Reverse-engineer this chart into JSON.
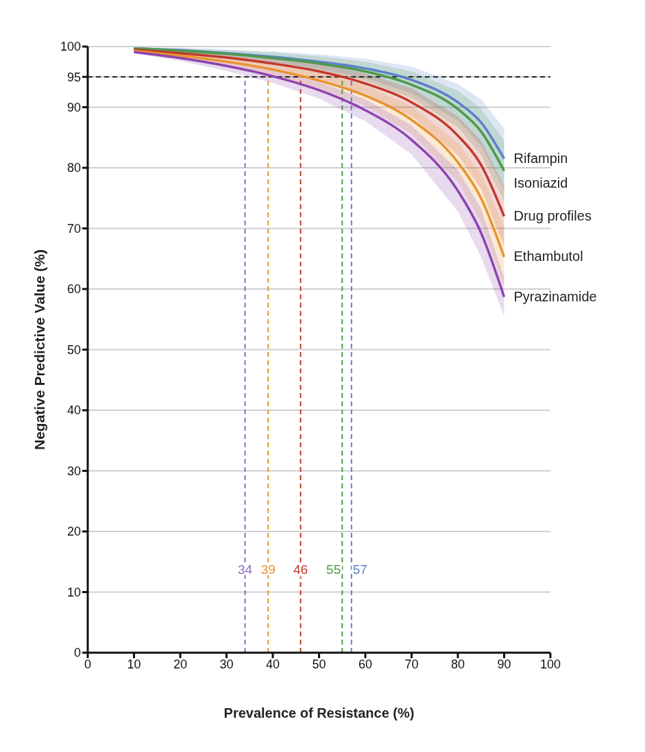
{
  "chart_data": {
    "type": "line",
    "xlabel": "Prevalence of Resistance (%)",
    "ylabel": "Negative Predictive Value (%)",
    "x": [
      10,
      20,
      30,
      40,
      50,
      60,
      70,
      80,
      85,
      90
    ],
    "series": [
      {
        "name": "Rifampin",
        "color": "#5b80c6",
        "values": [
          99.7,
          99.4,
          98.9,
          98.3,
          97.5,
          96.4,
          94.5,
          90.8,
          87.5,
          81.5
        ],
        "lower": [
          99.5,
          99.0,
          98.3,
          97.4,
          96.3,
          94.8,
          92.3,
          87.8,
          83.7,
          76.5
        ],
        "upper": [
          99.9,
          99.8,
          99.5,
          99.2,
          98.7,
          98.0,
          96.7,
          93.8,
          91.3,
          86.5
        ]
      },
      {
        "name": "Isoniazid",
        "color": "#4e9a4a",
        "values": [
          99.7,
          99.3,
          98.8,
          98.1,
          97.2,
          95.9,
          93.7,
          89.7,
          86.0,
          79.5
        ],
        "lower": [
          99.5,
          98.9,
          98.2,
          97.2,
          96.0,
          94.3,
          91.5,
          86.7,
          82.2,
          74.5
        ],
        "upper": [
          99.9,
          99.7,
          99.4,
          99.0,
          98.4,
          97.5,
          95.9,
          92.7,
          89.8,
          84.5
        ]
      },
      {
        "name": "Drug profiles",
        "color": "#c0392b",
        "values": [
          99.5,
          98.9,
          98.2,
          97.2,
          95.9,
          93.9,
          90.8,
          85.3,
          80.5,
          72.0
        ],
        "lower": [
          99.3,
          98.5,
          97.5,
          96.2,
          94.6,
          92.2,
          88.5,
          82.1,
          76.5,
          67.0
        ],
        "upper": [
          99.7,
          99.3,
          98.9,
          98.2,
          97.2,
          95.6,
          93.1,
          88.5,
          84.5,
          77.0
        ]
      },
      {
        "name": "Ethambutol",
        "color": "#e8922e",
        "values": [
          99.3,
          98.5,
          97.5,
          96.2,
          94.4,
          91.9,
          87.9,
          80.9,
          75.0,
          65.3
        ],
        "lower": [
          99.1,
          98.1,
          96.8,
          95.2,
          93.1,
          90.2,
          85.6,
          77.7,
          71.0,
          60.3
        ],
        "upper": [
          99.5,
          98.9,
          98.2,
          97.2,
          95.7,
          93.6,
          90.2,
          84.1,
          79.0,
          70.3
        ]
      },
      {
        "name": "Pyrazinamide",
        "color": "#8e44ad",
        "values": [
          99.1,
          98.1,
          96.8,
          95.1,
          92.8,
          89.5,
          84.6,
          76.2,
          69.3,
          58.7
        ],
        "lower": [
          98.9,
          97.6,
          96.0,
          94.0,
          91.4,
          87.7,
          82.2,
          72.8,
          65.3,
          55.5
        ],
        "upper": [
          99.5,
          98.6,
          97.6,
          96.2,
          94.2,
          91.3,
          87.0,
          79.6,
          73.3,
          61.9
        ]
      }
    ],
    "xlim": [
      0,
      100
    ],
    "xticks": [
      0,
      10,
      20,
      30,
      40,
      50,
      60,
      70,
      80,
      90,
      100
    ],
    "ylim": [
      0,
      100
    ],
    "yticks": [
      0,
      10,
      20,
      30,
      40,
      50,
      60,
      70,
      80,
      90,
      95,
      100
    ],
    "grid": "y",
    "legend": false,
    "marker": "none",
    "line_style": "solid",
    "ref_lines": [
      {
        "axis": "y",
        "value": 95,
        "color": "#222222",
        "line_style": "dashed"
      },
      {
        "axis": "x",
        "value": 34,
        "label": "34",
        "color": "#8e6bbf",
        "line_style": "dashed"
      },
      {
        "axis": "x",
        "value": 39,
        "label": "39",
        "color": "#e8922e",
        "line_style": "dashed"
      },
      {
        "axis": "x",
        "value": 46,
        "label": "46",
        "color": "#c0392b",
        "line_style": "dashed"
      },
      {
        "axis": "x",
        "value": 55,
        "label": "55",
        "color": "#4e9a4a",
        "line_style": "dashed"
      },
      {
        "axis": "x",
        "value": 57,
        "label": "57",
        "color": "#5b80c6",
        "line_style": "dashed"
      }
    ]
  }
}
